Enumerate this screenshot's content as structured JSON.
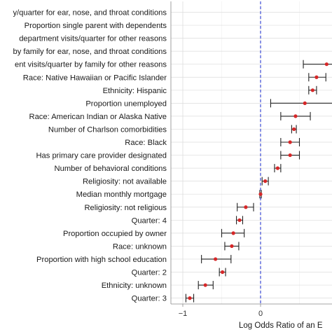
{
  "chart_data": {
    "type": "forest",
    "xlabel": "Log Odds Ratio of an E",
    "x_ticks": [
      -1,
      0
    ],
    "x_tick_labels": [
      "−1",
      "0"
    ],
    "xlim": [
      -1.1,
      0.9
    ],
    "reference_line": 0,
    "colors": {
      "point": "#d62728",
      "errorbar": "#222222",
      "reference": "#3b49d6",
      "grid_major": "#dcdcdc",
      "grid_minor": "#eeeeee",
      "frame": "#888888"
    },
    "rows": [
      {
        "label": "y/quarter for ear, nose, and throat conditions",
        "estimate": null,
        "lower": null,
        "upper": null
      },
      {
        "label": "Proportion single parent with dependents",
        "estimate": null,
        "lower": null,
        "upper": null
      },
      {
        "label": "department visits/quarter for other reasons",
        "estimate": null,
        "lower": null,
        "upper": null
      },
      {
        "label": "by family for ear, nose, and throat conditions",
        "estimate": null,
        "lower": null,
        "upper": null
      },
      {
        "label": "ent visits/quarter by family for other reasons",
        "estimate": 0.85,
        "lower": 0.55,
        "upper": 1.2
      },
      {
        "label": "Race: Native Hawaiian or Pacific Islander",
        "estimate": 0.72,
        "lower": 0.62,
        "upper": 0.84
      },
      {
        "label": "Ethnicity: Hispanic",
        "estimate": 0.67,
        "lower": 0.62,
        "upper": 0.72
      },
      {
        "label": "Proportion unemployed",
        "estimate": 0.57,
        "lower": 0.13,
        "upper": 1.2
      },
      {
        "label": "Race: American Indian or Alaska Native",
        "estimate": 0.45,
        "lower": 0.26,
        "upper": 0.64
      },
      {
        "label": "Number of Charlson comorbidities",
        "estimate": 0.43,
        "lower": 0.4,
        "upper": 0.46
      },
      {
        "label": "Race: Black",
        "estimate": 0.38,
        "lower": 0.26,
        "upper": 0.5
      },
      {
        "label": "Has primary care provider designated",
        "estimate": 0.38,
        "lower": 0.26,
        "upper": 0.5
      },
      {
        "label": "Number of behavioral conditions",
        "estimate": 0.22,
        "lower": 0.18,
        "upper": 0.26
      },
      {
        "label": "Religiosity: not available",
        "estimate": 0.06,
        "lower": 0.02,
        "upper": 0.1
      },
      {
        "label": "Median monthly mortgage",
        "estimate": 0.0,
        "lower": -0.01,
        "upper": 0.01
      },
      {
        "label": "Religiosity: not religious",
        "estimate": -0.19,
        "lower": -0.3,
        "upper": -0.09
      },
      {
        "label": "Quarter: 4",
        "estimate": -0.27,
        "lower": -0.31,
        "upper": -0.23
      },
      {
        "label": "Proportion occupied by owner",
        "estimate": -0.35,
        "lower": -0.5,
        "upper": -0.21
      },
      {
        "label": "Race: unknown",
        "estimate": -0.37,
        "lower": -0.46,
        "upper": -0.28
      },
      {
        "label": "Proportion with high school education",
        "estimate": -0.58,
        "lower": -0.76,
        "upper": -0.38
      },
      {
        "label": "Quarter: 2",
        "estimate": -0.49,
        "lower": -0.53,
        "upper": -0.45
      },
      {
        "label": "Ethnicity: unknown",
        "estimate": -0.71,
        "lower": -0.8,
        "upper": -0.61
      },
      {
        "label": "Quarter: 3",
        "estimate": -0.91,
        "lower": -0.96,
        "upper": -0.86
      }
    ]
  }
}
